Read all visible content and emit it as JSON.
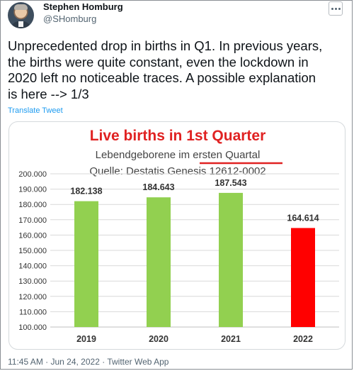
{
  "author": {
    "name": "Stephen Homburg",
    "handle": "@SHomburg",
    "avatar_icon": "profile-photo"
  },
  "tweet": {
    "text": "Unprecedented drop in births in Q1. In previous years,\nthe births were quite constant, even the lockdown in\n2020 left no noticeable traces. A possible explanation\nis here --> 1/3",
    "translate_label": "Translate Tweet",
    "timestamp": "11:45 AM · Jun 24, 2022 · Twitter Web App"
  },
  "more_icon": "more-options-icon",
  "chart_data": {
    "type": "bar",
    "title": "Live births in 1st Quarter",
    "subtitle_plain": "Lebendgeborene im ",
    "subtitle_underlined": "ersten Quartal",
    "source": "Quelle: Destatis Genesis 12612-0002",
    "categories": [
      "2019",
      "2020",
      "2021",
      "2022"
    ],
    "values": [
      182138,
      184643,
      187543,
      164614
    ],
    "value_labels": [
      "182.138",
      "184.643",
      "187.543",
      "164.614"
    ],
    "colors": [
      "#92d050",
      "#92d050",
      "#92d050",
      "#ff0000"
    ],
    "yticks": [
      "100.000",
      "110.000",
      "120.000",
      "130.000",
      "140.000",
      "150.000",
      "160.000",
      "170.000",
      "180.000",
      "190.000",
      "200.000"
    ],
    "ylim": [
      100000,
      200000
    ],
    "grid": true,
    "title_color": "#e02222",
    "underline_color": "#e02222"
  }
}
